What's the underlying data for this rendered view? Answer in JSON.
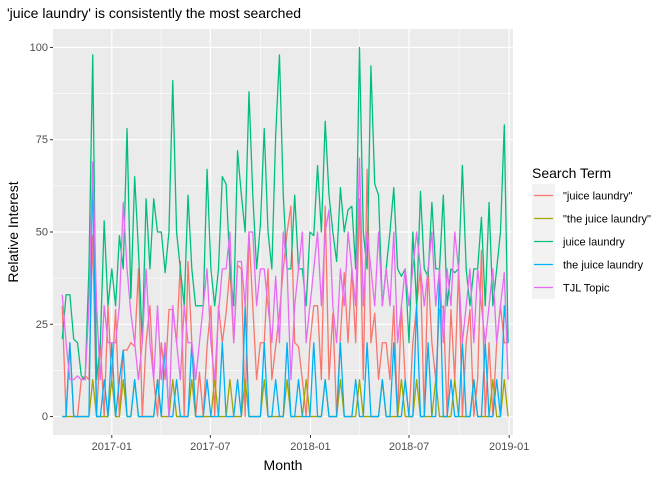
{
  "chart_data": {
    "type": "line",
    "title": "'juice laundry' is consistently the most searched",
    "xlabel": "Month",
    "ylabel": "Relative Interest",
    "xlim": [
      "2016-09-15",
      "2019-01-08"
    ],
    "ylim": [
      -5,
      105
    ],
    "x_ticks": [
      "2017-01",
      "2017-07",
      "2018-01",
      "2018-07",
      "2019-01"
    ],
    "y_ticks": [
      0,
      25,
      50,
      75,
      100
    ],
    "grid": true,
    "legend": {
      "title": "Search Term",
      "position": "right"
    },
    "x": [
      "2016-10-02",
      "2016-10-09",
      "2016-10-16",
      "2016-10-23",
      "2016-10-30",
      "2016-11-06",
      "2016-11-13",
      "2016-11-20",
      "2016-11-27",
      "2016-12-04",
      "2016-12-11",
      "2016-12-18",
      "2016-12-25",
      "2017-01-01",
      "2017-01-08",
      "2017-01-15",
      "2017-01-22",
      "2017-01-29",
      "2017-02-05",
      "2017-02-12",
      "2017-02-19",
      "2017-02-26",
      "2017-03-05",
      "2017-03-12",
      "2017-03-19",
      "2017-03-26",
      "2017-04-02",
      "2017-04-09",
      "2017-04-16",
      "2017-04-23",
      "2017-04-30",
      "2017-05-07",
      "2017-05-14",
      "2017-05-21",
      "2017-05-28",
      "2017-06-04",
      "2017-06-11",
      "2017-06-18",
      "2017-06-25",
      "2017-07-02",
      "2017-07-09",
      "2017-07-16",
      "2017-07-23",
      "2017-07-30",
      "2017-08-06",
      "2017-08-13",
      "2017-08-20",
      "2017-08-27",
      "2017-09-03",
      "2017-09-10",
      "2017-09-17",
      "2017-09-24",
      "2017-10-01",
      "2017-10-08",
      "2017-10-15",
      "2017-10-22",
      "2017-10-29",
      "2017-11-05",
      "2017-11-12",
      "2017-11-19",
      "2017-11-26",
      "2017-12-03",
      "2017-12-10",
      "2017-12-17",
      "2017-12-24",
      "2017-12-31",
      "2018-01-07",
      "2018-01-14",
      "2018-01-21",
      "2018-01-28",
      "2018-02-04",
      "2018-02-11",
      "2018-02-18",
      "2018-02-25",
      "2018-03-04",
      "2018-03-11",
      "2018-03-18",
      "2018-03-25",
      "2018-04-01",
      "2018-04-08",
      "2018-04-15",
      "2018-04-22",
      "2018-04-29",
      "2018-05-06",
      "2018-05-13",
      "2018-05-20",
      "2018-05-27",
      "2018-06-03",
      "2018-06-10",
      "2018-06-17",
      "2018-06-24",
      "2018-07-01",
      "2018-07-08",
      "2018-07-15",
      "2018-07-22",
      "2018-07-29",
      "2018-08-05",
      "2018-08-12",
      "2018-08-19",
      "2018-08-26",
      "2018-09-02",
      "2018-09-09",
      "2018-09-16",
      "2018-09-23",
      "2018-09-30",
      "2018-10-07",
      "2018-10-14",
      "2018-10-21",
      "2018-10-28",
      "2018-11-04",
      "2018-11-11",
      "2018-11-18",
      "2018-11-25",
      "2018-12-02",
      "2018-12-09",
      "2018-12-16",
      "2018-12-23",
      "2018-12-30"
    ],
    "series": [
      {
        "name": "\"juice laundry\"",
        "color": "#F8766D",
        "values": [
          30,
          0,
          20,
          0,
          0,
          10,
          11,
          10,
          49,
          0,
          20,
          0,
          30,
          10,
          29,
          0,
          18,
          18,
          20,
          19,
          40,
          0,
          20,
          30,
          10,
          0,
          20,
          10,
          29,
          29,
          20,
          42,
          0,
          42,
          20,
          0,
          12,
          0,
          19,
          30,
          0,
          30,
          20,
          28,
          40,
          20,
          41,
          40,
          0,
          50,
          30,
          10,
          20,
          20,
          40,
          10,
          19,
          28,
          40,
          50,
          57,
          20,
          19,
          10,
          0,
          20,
          30,
          30,
          10,
          57,
          10,
          28,
          0,
          22,
          39,
          20,
          40,
          20,
          59,
          10,
          67,
          20,
          28,
          10,
          20,
          20,
          10,
          30,
          0,
          30,
          10,
          0,
          20,
          30,
          40,
          0,
          40,
          20,
          10,
          29,
          30,
          0,
          29,
          10,
          40,
          0,
          20,
          29,
          0,
          10,
          45,
          0,
          20,
          0,
          20,
          30,
          20,
          20
        ]
      },
      {
        "name": "\"the juice laundry\"",
        "color": "#A3A500",
        "values": [
          0,
          0,
          0,
          0,
          0,
          0,
          0,
          0,
          10,
          0,
          0,
          0,
          0,
          10,
          0,
          0,
          10,
          0,
          0,
          10,
          0,
          0,
          0,
          0,
          0,
          10,
          0,
          0,
          0,
          10,
          0,
          0,
          0,
          0,
          10,
          0,
          0,
          0,
          0,
          0,
          10,
          0,
          0,
          0,
          10,
          0,
          0,
          0,
          10,
          0,
          0,
          0,
          0,
          10,
          0,
          0,
          0,
          0,
          0,
          10,
          0,
          0,
          0,
          0,
          10,
          0,
          0,
          0,
          0,
          10,
          0,
          0,
          0,
          10,
          0,
          0,
          0,
          0,
          10,
          0,
          0,
          0,
          0,
          0,
          10,
          0,
          0,
          0,
          0,
          10,
          0,
          0,
          0,
          10,
          0,
          0,
          0,
          0,
          10,
          0,
          0,
          0,
          0,
          10,
          0,
          0,
          0,
          0,
          10,
          0,
          0,
          0,
          0,
          10,
          0,
          0,
          10,
          0
        ]
      },
      {
        "name": "juice laundry",
        "color": "#00BF7D",
        "values": [
          21,
          33,
          33,
          21,
          20,
          11,
          10,
          40,
          98,
          10,
          20,
          53,
          30,
          40,
          30,
          49,
          40,
          78,
          32,
          65,
          45,
          20,
          59,
          40,
          59,
          50,
          50,
          39,
          50,
          91,
          50,
          40,
          30,
          60,
          40,
          30,
          30,
          30,
          67,
          40,
          30,
          40,
          65,
          63,
          40,
          30,
          72,
          60,
          50,
          88,
          60,
          40,
          52,
          78,
          50,
          40,
          76,
          98,
          60,
          40,
          40,
          60,
          40,
          40,
          30,
          50,
          49,
          68,
          50,
          80,
          60,
          50,
          42,
          62,
          50,
          56,
          57,
          40,
          100,
          50,
          40,
          95,
          63,
          60,
          30,
          40,
          50,
          62,
          40,
          38,
          40,
          20,
          50,
          30,
          61,
          40,
          38,
          58,
          40,
          40,
          60,
          30,
          40,
          39,
          40,
          68,
          40,
          30,
          40,
          40,
          54,
          30,
          58,
          30,
          40,
          50,
          79,
          20
        ]
      },
      {
        "name": "the juice laundry",
        "color": "#00B0F6",
        "values": [
          0,
          0,
          20,
          0,
          0,
          0,
          0,
          0,
          68,
          0,
          0,
          10,
          0,
          20,
          0,
          10,
          18,
          0,
          0,
          10,
          0,
          0,
          0,
          0,
          0,
          10,
          0,
          20,
          0,
          0,
          10,
          0,
          0,
          0,
          20,
          0,
          0,
          0,
          10,
          0,
          0,
          0,
          20,
          0,
          0,
          0,
          10,
          0,
          30,
          0,
          0,
          0,
          0,
          20,
          0,
          0,
          10,
          0,
          0,
          20,
          0,
          0,
          10,
          0,
          0,
          0,
          20,
          0,
          0,
          10,
          0,
          0,
          0,
          20,
          0,
          0,
          0,
          10,
          0,
          0,
          20,
          0,
          0,
          0,
          10,
          0,
          0,
          20,
          0,
          0,
          10,
          0,
          0,
          30,
          0,
          0,
          20,
          0,
          0,
          40,
          0,
          0,
          10,
          0,
          0,
          20,
          0,
          0,
          10,
          0,
          0,
          20,
          0,
          0,
          10,
          0,
          30,
          20
        ]
      },
      {
        "name": "TJL Topic",
        "color": "#E76BF3",
        "values": [
          33,
          20,
          10,
          10,
          11,
          10,
          10,
          30,
          69,
          30,
          10,
          30,
          20,
          20,
          20,
          30,
          58,
          40,
          28,
          20,
          10,
          20,
          40,
          20,
          10,
          30,
          10,
          20,
          0,
          30,
          20,
          10,
          30,
          20,
          20,
          10,
          20,
          30,
          40,
          20,
          10,
          28,
          40,
          40,
          50,
          20,
          42,
          42,
          30,
          50,
          50,
          30,
          40,
          40,
          30,
          20,
          38,
          20,
          50,
          40,
          10,
          30,
          40,
          50,
          20,
          30,
          40,
          50,
          30,
          50,
          56,
          30,
          20,
          40,
          30,
          50,
          40,
          30,
          70,
          30,
          50,
          40,
          30,
          50,
          30,
          40,
          30,
          50,
          20,
          30,
          40,
          30,
          40,
          50,
          40,
          30,
          40,
          50,
          30,
          40,
          20,
          40,
          30,
          50,
          40,
          20,
          30,
          40,
          20,
          40,
          30,
          20,
          30,
          40,
          20,
          30,
          39,
          10
        ]
      }
    ]
  }
}
